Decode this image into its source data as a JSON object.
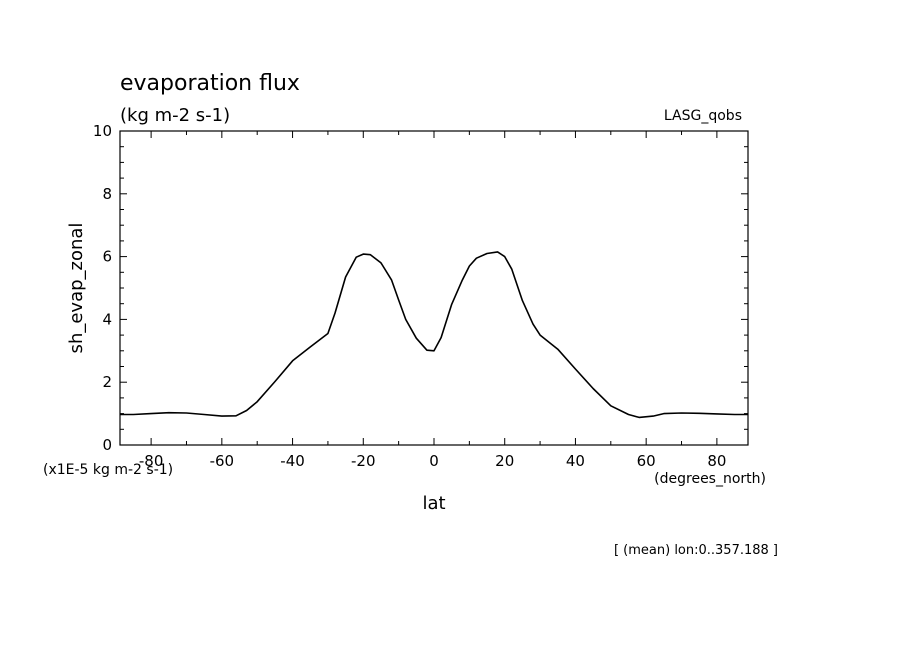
{
  "chart_data": {
    "type": "line",
    "title": "evaporation flux",
    "subtitle": "(kg m-2 s-1)",
    "dataset_label": "LASG_qobs",
    "xlabel": "lat",
    "x_units": "(degrees_north)",
    "ylabel": "sh_evap_zonal",
    "y_scale_note": "(x1E-5 kg m-2 s-1)",
    "footer": "[ (mean) lon:0..357.188 ]",
    "xlim": [
      -88.8,
      88.8
    ],
    "ylim": [
      0,
      10
    ],
    "x_ticks": [
      -80,
      -60,
      -40,
      -20,
      0,
      20,
      40,
      60,
      80
    ],
    "x_tick_labels": [
      "-80",
      "-60",
      "-40",
      "-20",
      "0",
      "20",
      "40",
      "60",
      "80"
    ],
    "y_ticks": [
      0,
      2,
      4,
      6,
      8,
      10
    ],
    "y_tick_labels": [
      "0",
      "2",
      "4",
      "6",
      "8",
      "10"
    ],
    "grid": false,
    "series": [
      {
        "x": [
          -88.8,
          -85,
          -80,
          -75,
          -70,
          -65,
          -60,
          -56,
          -53,
          -50,
          -45,
          -40,
          -35,
          -30,
          -28,
          -25,
          -22,
          -20,
          -18,
          -15,
          -12,
          -10,
          -8,
          -5,
          -2,
          0,
          2,
          5,
          8,
          10,
          12,
          15,
          18,
          20,
          22,
          25,
          28,
          30,
          35,
          40,
          45,
          50,
          55,
          58,
          62,
          65,
          70,
          75,
          80,
          85,
          88.8
        ],
        "y": [
          0.97,
          0.97,
          1.0,
          1.03,
          1.02,
          0.97,
          0.92,
          0.93,
          1.1,
          1.38,
          2.02,
          2.68,
          3.12,
          3.55,
          4.2,
          5.35,
          5.98,
          6.08,
          6.06,
          5.8,
          5.25,
          4.62,
          4.0,
          3.4,
          3.02,
          3.0,
          3.42,
          4.48,
          5.25,
          5.7,
          5.95,
          6.1,
          6.15,
          6.0,
          5.6,
          4.6,
          3.85,
          3.5,
          3.05,
          2.42,
          1.8,
          1.25,
          0.97,
          0.88,
          0.92,
          1.0,
          1.02,
          1.01,
          0.99,
          0.97,
          0.97
        ]
      }
    ]
  }
}
